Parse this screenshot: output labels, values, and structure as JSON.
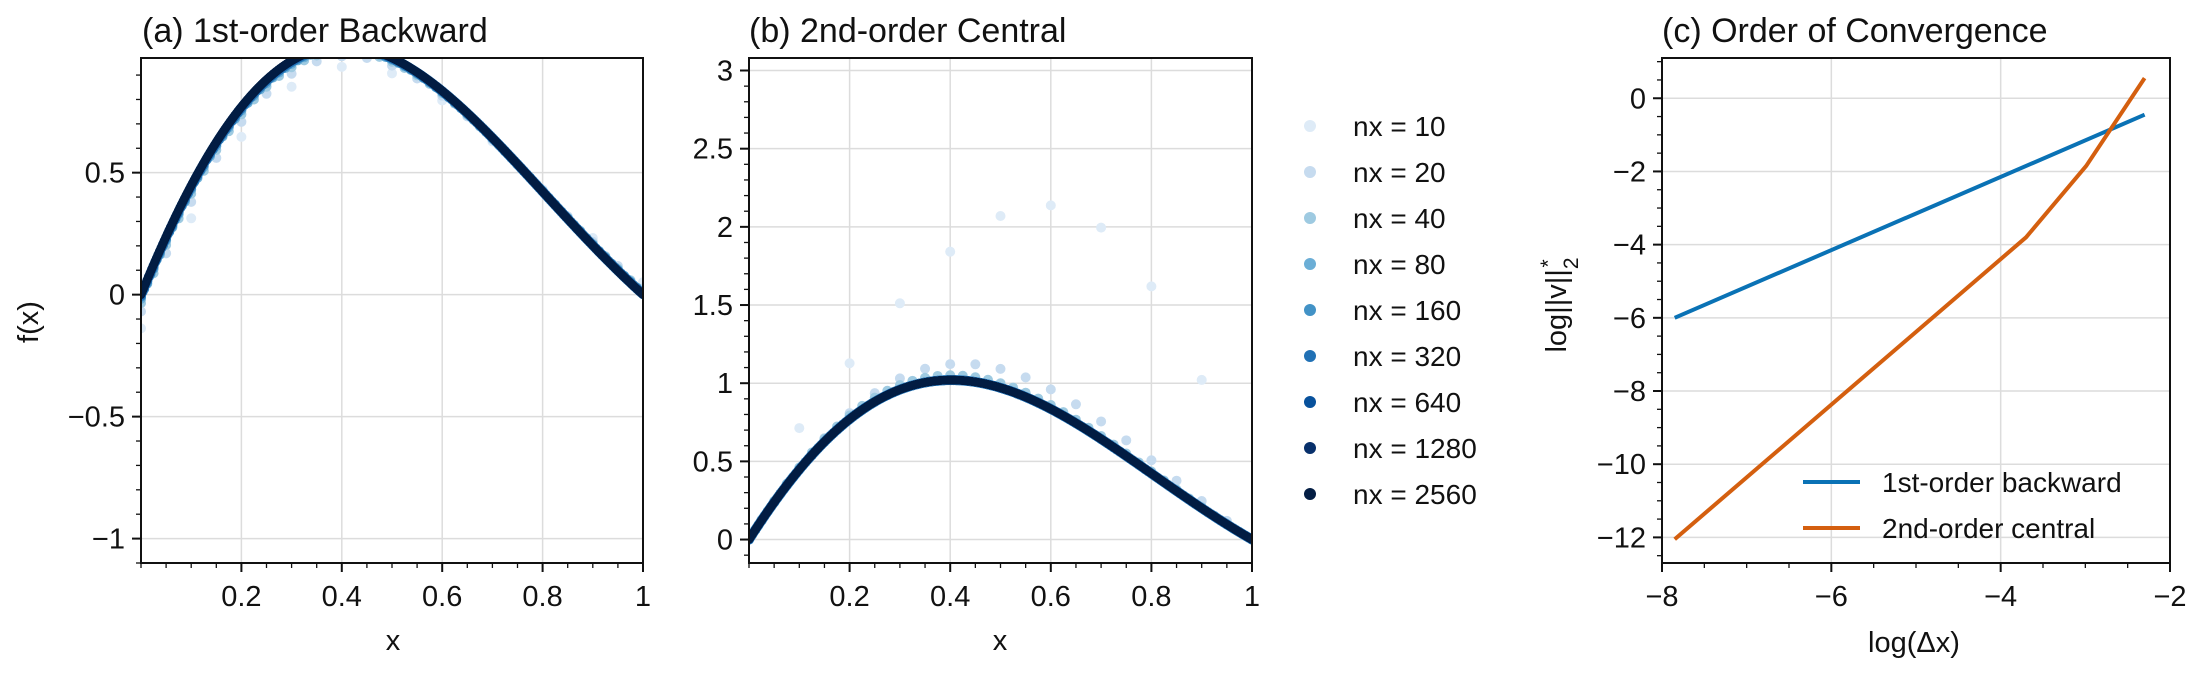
{
  "chart_data": [
    {
      "type": "scatter",
      "title": "(a) 1st-order Backward",
      "xlabel": "x",
      "ylabel": "f(x)",
      "xlim": [
        0,
        1
      ],
      "ylim": [
        -1.1,
        0.97
      ],
      "xticks": [
        0.2,
        0.4,
        0.6,
        0.8,
        1
      ],
      "xtick_labels": [
        "0.2",
        "0.4",
        "0.6",
        "0.8",
        "1"
      ],
      "yticks": [
        -1,
        -0.5,
        0,
        0.5
      ],
      "ytick_labels": [
        "−1",
        "−0.5",
        "0",
        "0.5"
      ],
      "grid": true,
      "scheme": "first_order_backward",
      "series": [
        {
          "name": "nx = 10",
          "nx": 10,
          "color": "#deebf7"
        },
        {
          "name": "nx = 20",
          "nx": 20,
          "color": "#c6dbef"
        },
        {
          "name": "nx = 40",
          "nx": 40,
          "color": "#9ecae1"
        },
        {
          "name": "nx = 80",
          "nx": 80,
          "color": "#6baed6"
        },
        {
          "name": "nx = 160",
          "nx": 160,
          "color": "#4292c6"
        },
        {
          "name": "nx = 320",
          "nx": 320,
          "color": "#2171b5"
        },
        {
          "name": "nx = 640",
          "nx": 640,
          "color": "#08519c"
        },
        {
          "name": "nx = 1280",
          "nx": 1280,
          "color": "#08306b"
        },
        {
          "name": "nx = 2560",
          "nx": 2560,
          "color": "#041e44"
        }
      ]
    },
    {
      "type": "scatter",
      "title": "(b) 2nd-order Central",
      "xlabel": "x",
      "ylabel": "",
      "xlim": [
        0,
        1
      ],
      "ylim": [
        -0.15,
        3.08
      ],
      "xticks": [
        0.2,
        0.4,
        0.6,
        0.8,
        1
      ],
      "xtick_labels": [
        "0.2",
        "0.4",
        "0.6",
        "0.8",
        "1"
      ],
      "yticks": [
        0,
        0.5,
        1,
        1.5,
        2,
        2.5,
        3
      ],
      "ytick_labels": [
        "0",
        "0.5",
        "1",
        "1.5",
        "2",
        "2.5",
        "3"
      ],
      "grid": true,
      "scheme": "second_order_central",
      "legend_position": "right",
      "series": [
        {
          "name": "nx = 10",
          "nx": 10,
          "color": "#deebf7"
        },
        {
          "name": "nx = 20",
          "nx": 20,
          "color": "#c6dbef"
        },
        {
          "name": "nx = 40",
          "nx": 40,
          "color": "#9ecae1"
        },
        {
          "name": "nx = 80",
          "nx": 80,
          "color": "#6baed6"
        },
        {
          "name": "nx = 160",
          "nx": 160,
          "color": "#4292c6"
        },
        {
          "name": "nx = 320",
          "nx": 320,
          "color": "#2171b5"
        },
        {
          "name": "nx = 640",
          "nx": 640,
          "color": "#08519c"
        },
        {
          "name": "nx = 1280",
          "nx": 1280,
          "color": "#08306b"
        },
        {
          "name": "nx = 2560",
          "nx": 2560,
          "color": "#041e44"
        }
      ]
    },
    {
      "type": "line",
      "title": "(c) Order of Convergence",
      "xlabel": "log(Δx)",
      "ylabel": "log||v||₂*",
      "xlim": [
        -8,
        -2
      ],
      "ylim": [
        -12.7,
        1.1
      ],
      "xticks": [
        -8,
        -6,
        -4,
        -2
      ],
      "xtick_labels": [
        "−8",
        "−6",
        "−4",
        "−2"
      ],
      "yticks": [
        -12,
        -10,
        -8,
        -6,
        -4,
        -2,
        0
      ],
      "ytick_labels": [
        "−12",
        "−10",
        "−8",
        "−6",
        "−4",
        "−2",
        "0"
      ],
      "grid": true,
      "legend_position": "lower right",
      "series": [
        {
          "name": "1st-order backward",
          "color": "#0a72b5",
          "x": [
            -7.85,
            -2.3
          ],
          "y": [
            -6.0,
            -0.45
          ]
        },
        {
          "name": "2nd-order central",
          "color": "#d45f0f",
          "x": [
            -7.85,
            -3.7,
            -2.99,
            -2.3
          ],
          "y": [
            -12.05,
            -3.8,
            -1.85,
            0.55
          ]
        }
      ]
    }
  ]
}
